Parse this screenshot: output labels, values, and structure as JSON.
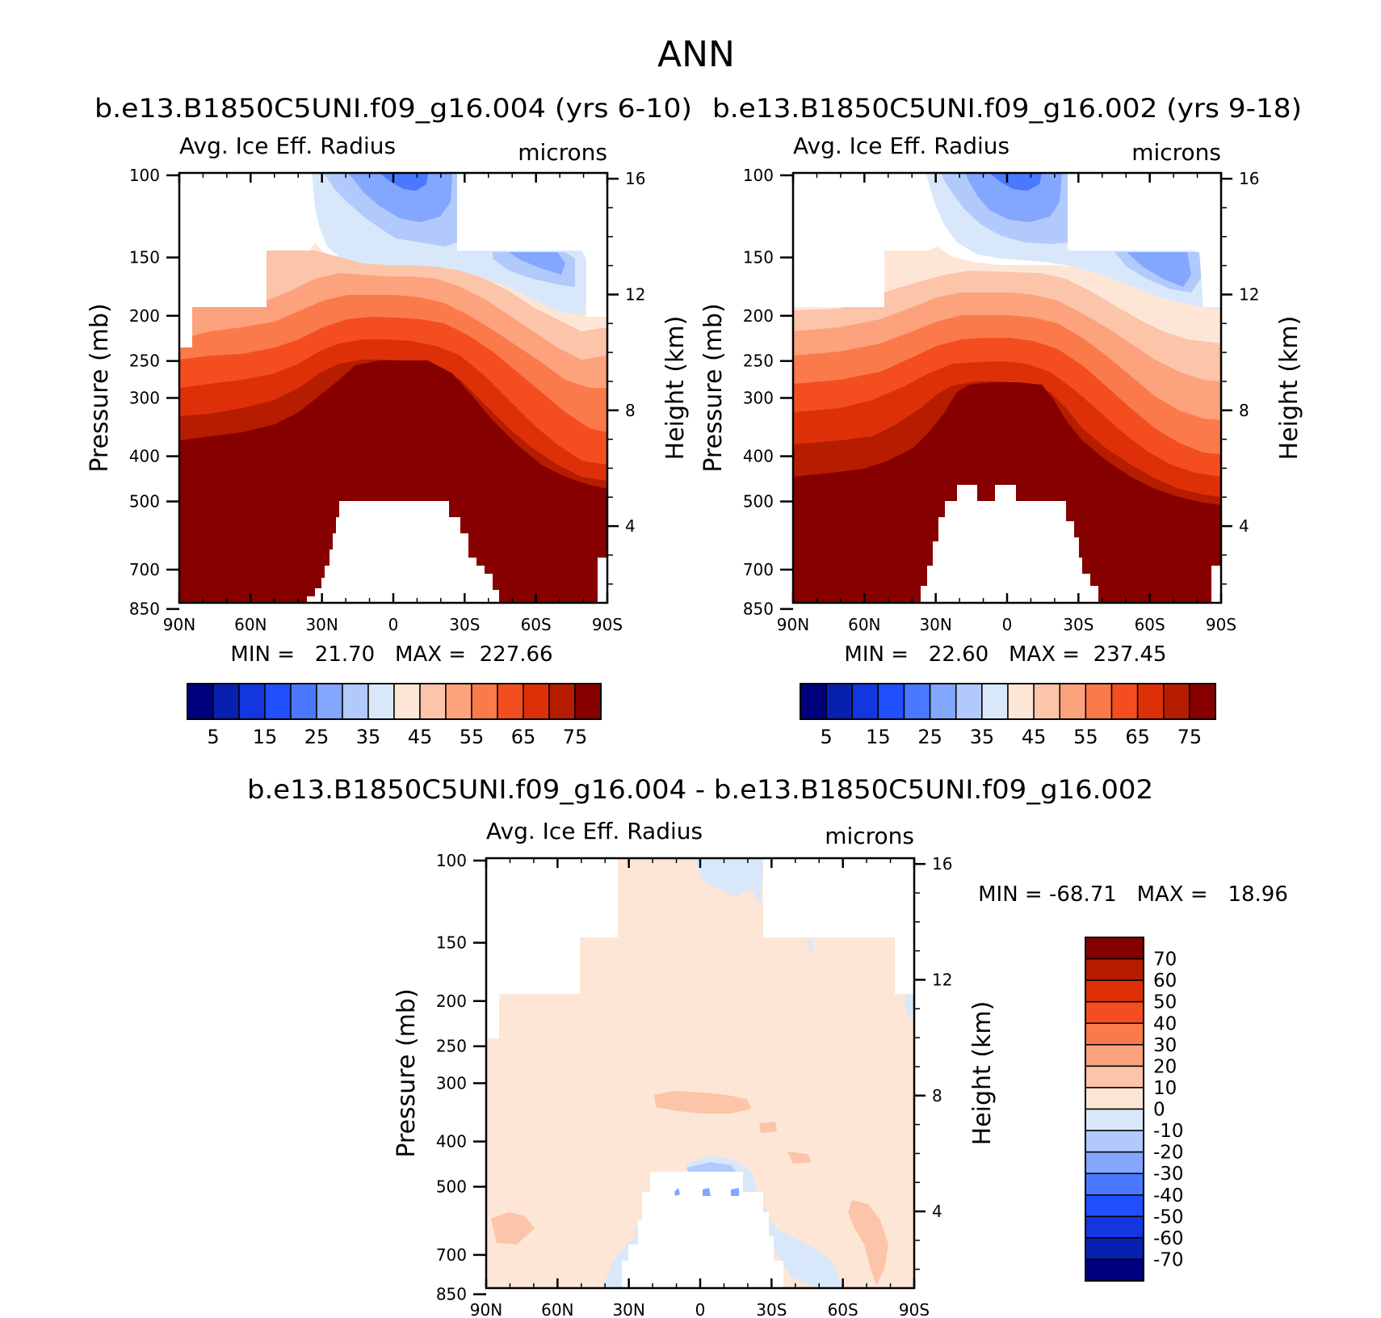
{
  "figure_title": "ANN",
  "chart_data": [
    {
      "type": "heatmap",
      "title": "b.e13.B1850C5UNI.f09_g16.004 (yrs 6-10)",
      "variable": "Avg. Ice Eff. Radius",
      "units": "microns",
      "ylabel": "Pressure (mb)",
      "ylabel_right": "Height (km)",
      "x_ticks": [
        "90N",
        "60N",
        "30N",
        "0",
        "30S",
        "60S",
        "90S"
      ],
      "y_ticks": [
        "100",
        "150",
        "200",
        "250",
        "300",
        "400",
        "500",
        "700",
        "850"
      ],
      "y_ticks_right": [
        "16",
        "12",
        "8",
        "4"
      ],
      "stats": "MIN =   21.70   MAX =  227.66",
      "min": 21.7,
      "max": 227.66,
      "levels": [
        5,
        10,
        15,
        20,
        25,
        30,
        35,
        40,
        45,
        50,
        55,
        60,
        65,
        70,
        75
      ],
      "colorbar_labels": [
        "5",
        "15",
        "25",
        "35",
        "45",
        "55",
        "65",
        "75"
      ],
      "colors": [
        "#00007f",
        "#0720b0",
        "#1236df",
        "#1f4fff",
        "#4a78ff",
        "#83a6ff",
        "#b2c9fb",
        "#d8e8fa",
        "#fde6d6",
        "#fcc4a8",
        "#fca27d",
        "#fb7a4b",
        "#f44d20",
        "#de3008",
        "#b51c00",
        "#870000"
      ]
    },
    {
      "type": "heatmap",
      "title": "b.e13.B1850C5UNI.f09_g16.002 (yrs 9-18)",
      "variable": "Avg. Ice Eff. Radius",
      "units": "microns",
      "ylabel": "Pressure (mb)",
      "ylabel_right": "Height (km)",
      "x_ticks": [
        "90N",
        "60N",
        "30N",
        "0",
        "30S",
        "60S",
        "90S"
      ],
      "y_ticks": [
        "100",
        "150",
        "200",
        "250",
        "300",
        "400",
        "500",
        "700",
        "850"
      ],
      "y_ticks_right": [
        "16",
        "12",
        "8",
        "4"
      ],
      "stats": "MIN =   22.60   MAX =  237.45",
      "min": 22.6,
      "max": 237.45,
      "levels": [
        5,
        10,
        15,
        20,
        25,
        30,
        35,
        40,
        45,
        50,
        55,
        60,
        65,
        70,
        75
      ],
      "colorbar_labels": [
        "5",
        "15",
        "25",
        "35",
        "45",
        "55",
        "65",
        "75"
      ],
      "colors": [
        "#00007f",
        "#0720b0",
        "#1236df",
        "#1f4fff",
        "#4a78ff",
        "#83a6ff",
        "#b2c9fb",
        "#d8e8fa",
        "#fde6d6",
        "#fcc4a8",
        "#fca27d",
        "#fb7a4b",
        "#f44d20",
        "#de3008",
        "#b51c00",
        "#870000"
      ]
    },
    {
      "type": "heatmap",
      "title": "b.e13.B1850C5UNI.f09_g16.004 - b.e13.B1850C5UNI.f09_g16.002",
      "variable": "Avg. Ice Eff. Radius",
      "units": "microns",
      "ylabel": "Pressure (mb)",
      "ylabel_right": "Height (km)",
      "x_ticks": [
        "90N",
        "60N",
        "30N",
        "0",
        "30S",
        "60S",
        "90S"
      ],
      "y_ticks": [
        "100",
        "150",
        "200",
        "250",
        "300",
        "400",
        "500",
        "700",
        "850"
      ],
      "y_ticks_right": [
        "16",
        "12",
        "8",
        "4"
      ],
      "stats": "MIN = -68.71   MAX =   18.96",
      "min": -68.71,
      "max": 18.96,
      "levels": [
        -70,
        -60,
        -50,
        -40,
        -30,
        -20,
        -10,
        0,
        10,
        20,
        30,
        40,
        50,
        60,
        70
      ],
      "colorbar_labels": [
        "70",
        "60",
        "50",
        "40",
        "30",
        "20",
        "10",
        "0",
        "-10",
        "-20",
        "-30",
        "-40",
        "-50",
        "-60",
        "-70"
      ],
      "colors": [
        "#870000",
        "#b51c00",
        "#de3008",
        "#f44d20",
        "#fb7a4b",
        "#fca27d",
        "#fcc4a8",
        "#fde6d6",
        "#d8e8fa",
        "#b2c9fb",
        "#83a6ff",
        "#4a78ff",
        "#1f4fff",
        "#1236df",
        "#0720b0",
        "#00007f"
      ]
    }
  ]
}
